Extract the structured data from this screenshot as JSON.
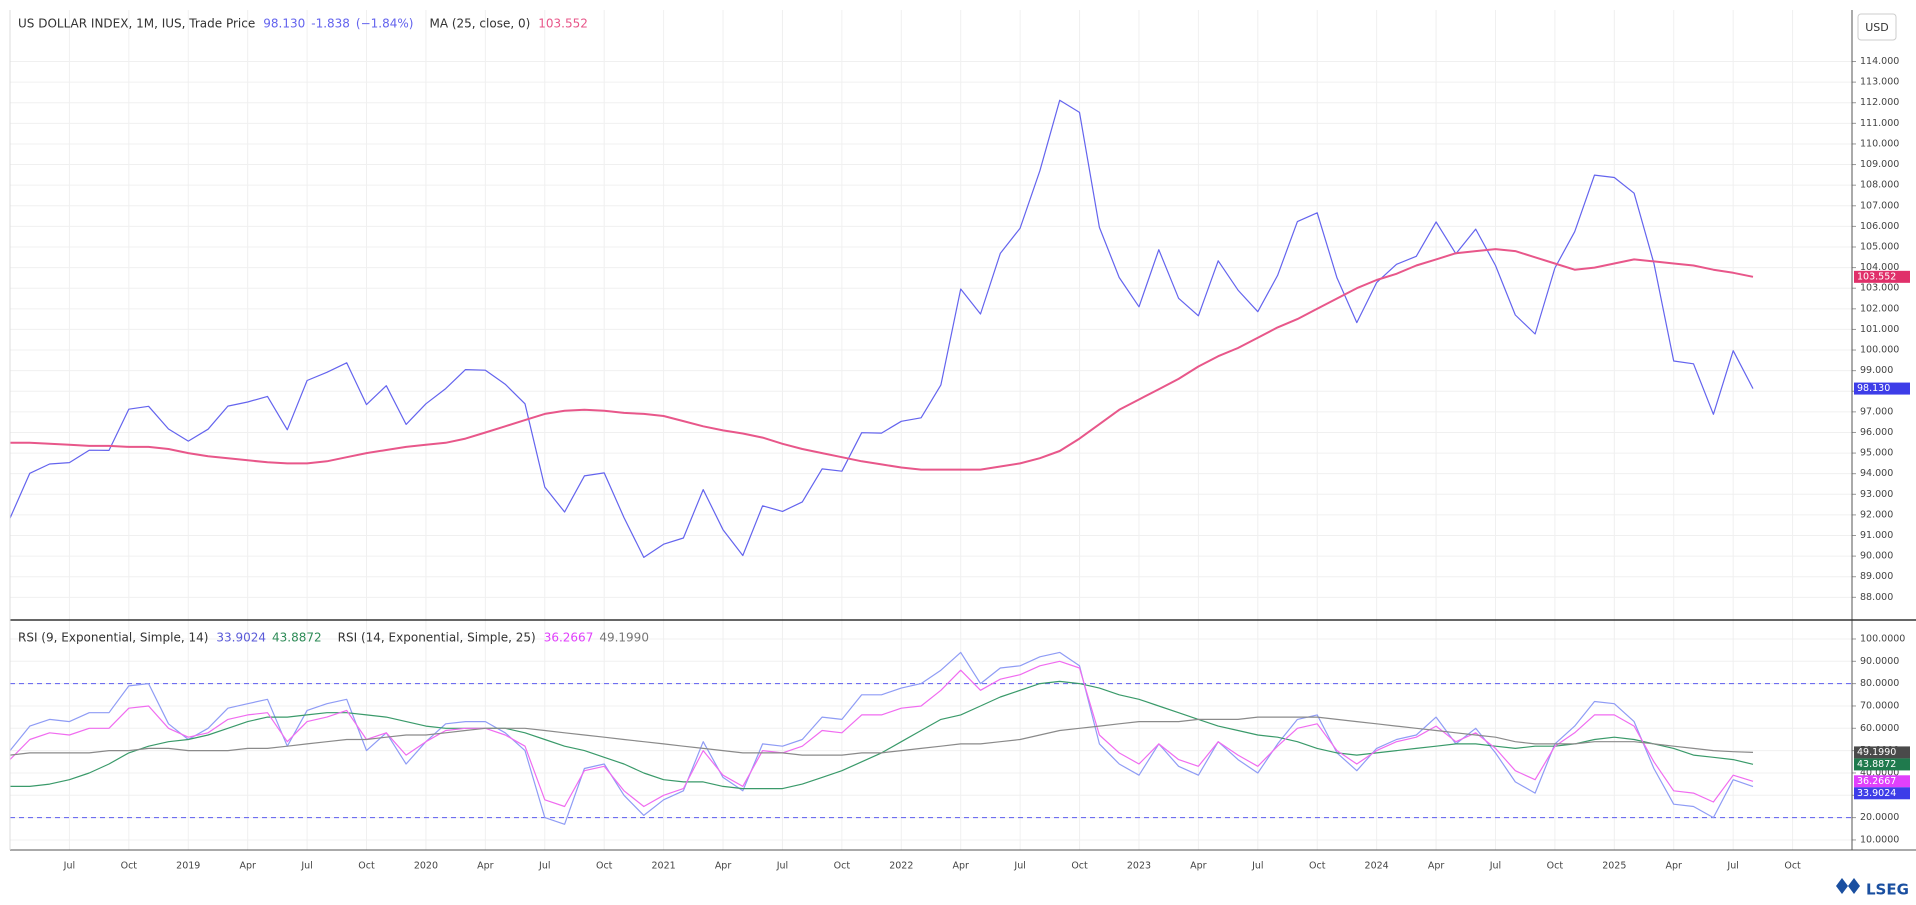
{
  "chart_data": [
    {
      "type": "line",
      "x": [
        "2018-04",
        "2018-05",
        "2018-06",
        "2018-07",
        "2018-08",
        "2018-09",
        "2018-10",
        "2018-11",
        "2018-12",
        "2019-01",
        "2019-02",
        "2019-03",
        "2019-04",
        "2019-05",
        "2019-06",
        "2019-07",
        "2019-08",
        "2019-09",
        "2019-10",
        "2019-11",
        "2019-12",
        "2020-01",
        "2020-02",
        "2020-03",
        "2020-04",
        "2020-05",
        "2020-06",
        "2020-07",
        "2020-08",
        "2020-09",
        "2020-10",
        "2020-11",
        "2020-12",
        "2021-01",
        "2021-02",
        "2021-03",
        "2021-04",
        "2021-05",
        "2021-06",
        "2021-07",
        "2021-08",
        "2021-09",
        "2021-10",
        "2021-11",
        "2021-12",
        "2022-01",
        "2022-02",
        "2022-03",
        "2022-04",
        "2022-05",
        "2022-06",
        "2022-07",
        "2022-08",
        "2022-09",
        "2022-10",
        "2022-11",
        "2022-12",
        "2023-01",
        "2023-02",
        "2023-03",
        "2023-04",
        "2023-05",
        "2023-06",
        "2023-07",
        "2023-08",
        "2023-09",
        "2023-10",
        "2023-11",
        "2023-12",
        "2024-01",
        "2024-02",
        "2024-03",
        "2024-04",
        "2024-05",
        "2024-06",
        "2024-07",
        "2024-08",
        "2024-09",
        "2024-10",
        "2024-11",
        "2024-12",
        "2025-01",
        "2025-02",
        "2025-03",
        "2025-04",
        "2025-05",
        "2025-06",
        "2025-07",
        "2025-08"
      ],
      "xlim": [
        "2018-04",
        "2026-01"
      ],
      "ylim": [
        86.9,
        116.5
      ],
      "yticks": [
        {
          "value": 88,
          "label": "88.000"
        },
        {
          "value": 89,
          "label": "89.000"
        },
        {
          "value": 90,
          "label": "90.000"
        },
        {
          "value": 91,
          "label": "91.000"
        },
        {
          "value": 92,
          "label": "92.000"
        },
        {
          "value": 93,
          "label": "93.000"
        },
        {
          "value": 94,
          "label": "94.000"
        },
        {
          "value": 95,
          "label": "95.000"
        },
        {
          "value": 96,
          "label": "96.000"
        },
        {
          "value": 97,
          "label": "97.000"
        },
        {
          "value": 98,
          "label": "98.000"
        },
        {
          "value": 99,
          "label": "99.000"
        },
        {
          "value": 100,
          "label": "100.000"
        },
        {
          "value": 101,
          "label": "101.000"
        },
        {
          "value": 102,
          "label": "102.000"
        },
        {
          "value": 103,
          "label": "103.000"
        },
        {
          "value": 104,
          "label": "104.000"
        },
        {
          "value": 105,
          "label": "105.000"
        },
        {
          "value": 106,
          "label": "106.000"
        },
        {
          "value": 107,
          "label": "107.000"
        },
        {
          "value": 108,
          "label": "108.000"
        },
        {
          "value": 109,
          "label": "109.000"
        },
        {
          "value": 110,
          "label": "110.000"
        },
        {
          "value": 111,
          "label": "111.000"
        },
        {
          "value": 112,
          "label": "112.000"
        },
        {
          "value": 113,
          "label": "113.000"
        },
        {
          "value": 114,
          "label": "114.000"
        }
      ],
      "grid": true,
      "series": [
        {
          "name": "US DOLLAR INDEX, 1M, IUS, Trade Price",
          "color": "#6464ee",
          "legend_values": [
            "98.130",
            "-1.838",
            "(−1.84%)"
          ],
          "tag_color": "#3d3de8",
          "values": [
            91.84,
            94.02,
            94.47,
            94.54,
            95.14,
            95.13,
            97.13,
            97.27,
            96.17,
            95.58,
            96.16,
            97.28,
            97.48,
            97.75,
            96.13,
            98.52,
            98.92,
            99.38,
            97.35,
            98.27,
            96.39,
            97.39,
            98.13,
            99.05,
            99.02,
            98.34,
            97.39,
            93.35,
            92.14,
            93.89,
            94.04,
            91.87,
            89.94,
            90.58,
            90.88,
            93.23,
            91.28,
            90.03,
            92.44,
            92.17,
            92.63,
            94.23,
            94.12,
            95.99,
            95.97,
            96.54,
            96.71,
            98.31,
            102.96,
            101.75,
            104.69,
            105.91,
            108.7,
            112.12,
            111.53,
            105.95,
            103.52,
            102.1,
            104.87,
            102.51,
            101.66,
            104.33,
            102.91,
            101.86,
            103.62,
            106.23,
            106.66,
            103.5,
            101.33,
            103.27,
            104.16,
            104.55,
            106.22,
            104.67,
            105.87,
            104.1,
            101.7,
            100.78,
            103.98,
            105.74,
            108.49,
            108.37,
            107.61,
            104.21,
            99.47,
            99.33,
            96.88,
            99.97,
            98.13
          ]
        },
        {
          "name": "MA (25, close, 0)",
          "color": "#e8578a",
          "legend_values": [
            "103.552"
          ],
          "tag_color": "#e0306a",
          "values": [
            95.5,
            95.5,
            95.45,
            95.4,
            95.35,
            95.35,
            95.3,
            95.3,
            95.2,
            95.0,
            94.85,
            94.75,
            94.65,
            94.55,
            94.5,
            94.5,
            94.6,
            94.8,
            95.0,
            95.15,
            95.3,
            95.4,
            95.5,
            95.7,
            96.0,
            96.3,
            96.6,
            96.9,
            97.05,
            97.1,
            97.05,
            96.95,
            96.9,
            96.8,
            96.55,
            96.3,
            96.1,
            95.95,
            95.75,
            95.45,
            95.2,
            95.0,
            94.8,
            94.6,
            94.45,
            94.3,
            94.2,
            94.2,
            94.2,
            94.2,
            94.35,
            94.5,
            94.75,
            95.1,
            95.7,
            96.4,
            97.1,
            97.6,
            98.1,
            98.6,
            99.2,
            99.7,
            100.1,
            100.6,
            101.1,
            101.5,
            102.0,
            102.5,
            103.0,
            103.4,
            103.7,
            104.1,
            104.4,
            104.7,
            104.8,
            104.9,
            104.8,
            104.5,
            104.2,
            103.9,
            104.0,
            104.2,
            104.4,
            104.3,
            104.2,
            104.1,
            103.9,
            103.75,
            103.552
          ]
        }
      ]
    },
    {
      "type": "line",
      "x": [
        "2018-04",
        "2018-05",
        "2018-06",
        "2018-07",
        "2018-08",
        "2018-09",
        "2018-10",
        "2018-11",
        "2018-12",
        "2019-01",
        "2019-02",
        "2019-03",
        "2019-04",
        "2019-05",
        "2019-06",
        "2019-07",
        "2019-08",
        "2019-09",
        "2019-10",
        "2019-11",
        "2019-12",
        "2020-01",
        "2020-02",
        "2020-03",
        "2020-04",
        "2020-05",
        "2020-06",
        "2020-07",
        "2020-08",
        "2020-09",
        "2020-10",
        "2020-11",
        "2020-12",
        "2021-01",
        "2021-02",
        "2021-03",
        "2021-04",
        "2021-05",
        "2021-06",
        "2021-07",
        "2021-08",
        "2021-09",
        "2021-10",
        "2021-11",
        "2021-12",
        "2022-01",
        "2022-02",
        "2022-03",
        "2022-04",
        "2022-05",
        "2022-06",
        "2022-07",
        "2022-08",
        "2022-09",
        "2022-10",
        "2022-11",
        "2022-12",
        "2023-01",
        "2023-02",
        "2023-03",
        "2023-04",
        "2023-05",
        "2023-06",
        "2023-07",
        "2023-08",
        "2023-09",
        "2023-10",
        "2023-11",
        "2023-12",
        "2024-01",
        "2024-02",
        "2024-03",
        "2024-04",
        "2024-05",
        "2024-06",
        "2024-07",
        "2024-08",
        "2024-09",
        "2024-10",
        "2024-11",
        "2024-12",
        "2025-01",
        "2025-02",
        "2025-03",
        "2025-04",
        "2025-05",
        "2025-06",
        "2025-07",
        "2025-08"
      ],
      "xlim": [
        "2018-04",
        "2026-01"
      ],
      "xticks": [
        {
          "value": "2018-07",
          "label": "Jul"
        },
        {
          "value": "2018-10",
          "label": "Oct"
        },
        {
          "value": "2019-01",
          "label": "2019"
        },
        {
          "value": "2019-04",
          "label": "Apr"
        },
        {
          "value": "2019-07",
          "label": "Jul"
        },
        {
          "value": "2019-10",
          "label": "Oct"
        },
        {
          "value": "2020-01",
          "label": "2020"
        },
        {
          "value": "2020-04",
          "label": "Apr"
        },
        {
          "value": "2020-07",
          "label": "Jul"
        },
        {
          "value": "2020-10",
          "label": "Oct"
        },
        {
          "value": "2021-01",
          "label": "2021"
        },
        {
          "value": "2021-04",
          "label": "Apr"
        },
        {
          "value": "2021-07",
          "label": "Jul"
        },
        {
          "value": "2021-10",
          "label": "Oct"
        },
        {
          "value": "2022-01",
          "label": "2022"
        },
        {
          "value": "2022-04",
          "label": "Apr"
        },
        {
          "value": "2022-07",
          "label": "Jul"
        },
        {
          "value": "2022-10",
          "label": "Oct"
        },
        {
          "value": "2023-01",
          "label": "2023"
        },
        {
          "value": "2023-04",
          "label": "Apr"
        },
        {
          "value": "2023-07",
          "label": "Jul"
        },
        {
          "value": "2023-10",
          "label": "Oct"
        },
        {
          "value": "2024-01",
          "label": "2024"
        },
        {
          "value": "2024-04",
          "label": "Apr"
        },
        {
          "value": "2024-07",
          "label": "Jul"
        },
        {
          "value": "2024-10",
          "label": "Oct"
        },
        {
          "value": "2025-01",
          "label": "2025"
        },
        {
          "value": "2025-04",
          "label": "Apr"
        },
        {
          "value": "2025-07",
          "label": "Jul"
        },
        {
          "value": "2025-10",
          "label": "Oct"
        }
      ],
      "ylim": [
        5.5,
        108.5
      ],
      "yticks": [
        {
          "value": 10,
          "label": "10.0000"
        },
        {
          "value": 20,
          "label": "20.0000"
        },
        {
          "value": 30,
          "label": "30.0000"
        },
        {
          "value": 40,
          "label": "40.0000"
        },
        {
          "value": 50,
          "label": "50.0000"
        },
        {
          "value": 60,
          "label": "60.0000"
        },
        {
          "value": 70,
          "label": "70.0000"
        },
        {
          "value": 80,
          "label": "80.0000"
        },
        {
          "value": 90,
          "label": "90.0000"
        },
        {
          "value": 100,
          "label": "100.0000"
        }
      ],
      "hlines": [
        80,
        20
      ],
      "hline_color": "#5c5cf0",
      "grid": true,
      "series": [
        {
          "name": "RSI (9, Exponential, Simple, 14)",
          "color": "#8f9cf5",
          "legend_color": "#5a5ad8",
          "tag_color": "#3d3de8",
          "legend_values": [
            "33.9024"
          ],
          "values": [
            50,
            61,
            64,
            63,
            67,
            67,
            79,
            80,
            62,
            55,
            60,
            69,
            71,
            73,
            52,
            68,
            71,
            73,
            50,
            58,
            44,
            54,
            62,
            63,
            63,
            58,
            50,
            20,
            17,
            42,
            44,
            30,
            21,
            28,
            32,
            54,
            38,
            32,
            53,
            52,
            55,
            65,
            64,
            75,
            75,
            78,
            80,
            86,
            94,
            80,
            87,
            88,
            92,
            94,
            88,
            53,
            44,
            39,
            53,
            43,
            39,
            54,
            46,
            40,
            53,
            64,
            66,
            49,
            41,
            51,
            55,
            57,
            65,
            53,
            60,
            49,
            36,
            31,
            53,
            61,
            72,
            71,
            63,
            42,
            26,
            25,
            20,
            37,
            33.9024
          ]
        },
        {
          "color": "#3a9a6a",
          "legend_color": "#2e8b57",
          "tag_color": "#1f7a4d",
          "legend_values": [
            "43.8872"
          ],
          "values": [
            34,
            34,
            35,
            37,
            40,
            44,
            49,
            52,
            54,
            55,
            57,
            60,
            63,
            65,
            65,
            66,
            67,
            67,
            66,
            65,
            63,
            61,
            60,
            60,
            60,
            60,
            58,
            55,
            52,
            50,
            47,
            44,
            40,
            37,
            36,
            36,
            34,
            33,
            33,
            33,
            35,
            38,
            41,
            45,
            49,
            54,
            59,
            64,
            66,
            70,
            74,
            77,
            80,
            81,
            80,
            78,
            75,
            73,
            70,
            67,
            64,
            61,
            59,
            57,
            56,
            54,
            51,
            49,
            48,
            49,
            50,
            51,
            52,
            53,
            53,
            52,
            51,
            52,
            52,
            53,
            55,
            56,
            55,
            53,
            51,
            48,
            47,
            46,
            43.8872
          ]
        },
        {
          "name": "RSI (14, Exponential, Simple, 25)",
          "color": "#f06cf0",
          "legend_color": "#e040fb",
          "tag_color": "#e040fb",
          "legend_values": [
            "36.2667"
          ],
          "values": [
            46,
            55,
            58,
            57,
            60,
            60,
            69,
            70,
            60,
            56,
            58,
            64,
            66,
            67,
            54,
            63,
            65,
            68,
            55,
            58,
            48,
            54,
            59,
            60,
            60,
            57,
            52,
            28,
            25,
            41,
            43,
            32,
            25,
            30,
            33,
            50,
            39,
            34,
            50,
            49,
            52,
            59,
            58,
            66,
            66,
            69,
            70,
            77,
            86,
            77,
            82,
            84,
            88,
            90,
            87,
            57,
            49,
            44,
            53,
            46,
            43,
            54,
            48,
            43,
            52,
            60,
            62,
            50,
            44,
            50,
            54,
            56,
            61,
            54,
            58,
            51,
            41,
            37,
            52,
            58,
            66,
            66,
            61,
            45,
            32,
            31,
            27,
            39,
            36.2667
          ]
        },
        {
          "color": "#8a8a8a",
          "legend_color": "#777777",
          "tag_color": "#4a4a4a",
          "legend_values": [
            "49.1990"
          ],
          "values": [
            48,
            49,
            49,
            49,
            49,
            50,
            50,
            51,
            51,
            50,
            50,
            50,
            51,
            51,
            52,
            53,
            54,
            55,
            55,
            56,
            57,
            57,
            58,
            59,
            60,
            60,
            60,
            59,
            58,
            57,
            56,
            55,
            54,
            53,
            52,
            51,
            50,
            49,
            49,
            49,
            48,
            48,
            48,
            49,
            49,
            50,
            51,
            52,
            53,
            53,
            54,
            55,
            57,
            59,
            60,
            61,
            62,
            63,
            63,
            63,
            64,
            64,
            64,
            65,
            65,
            65,
            65,
            64,
            63,
            62,
            61,
            60,
            59,
            58,
            57,
            56,
            54,
            53,
            53,
            53,
            54,
            54,
            54,
            53,
            52,
            51,
            50,
            49.5,
            49.199
          ]
        }
      ]
    }
  ],
  "currency": "USD",
  "brand": "LSEG"
}
